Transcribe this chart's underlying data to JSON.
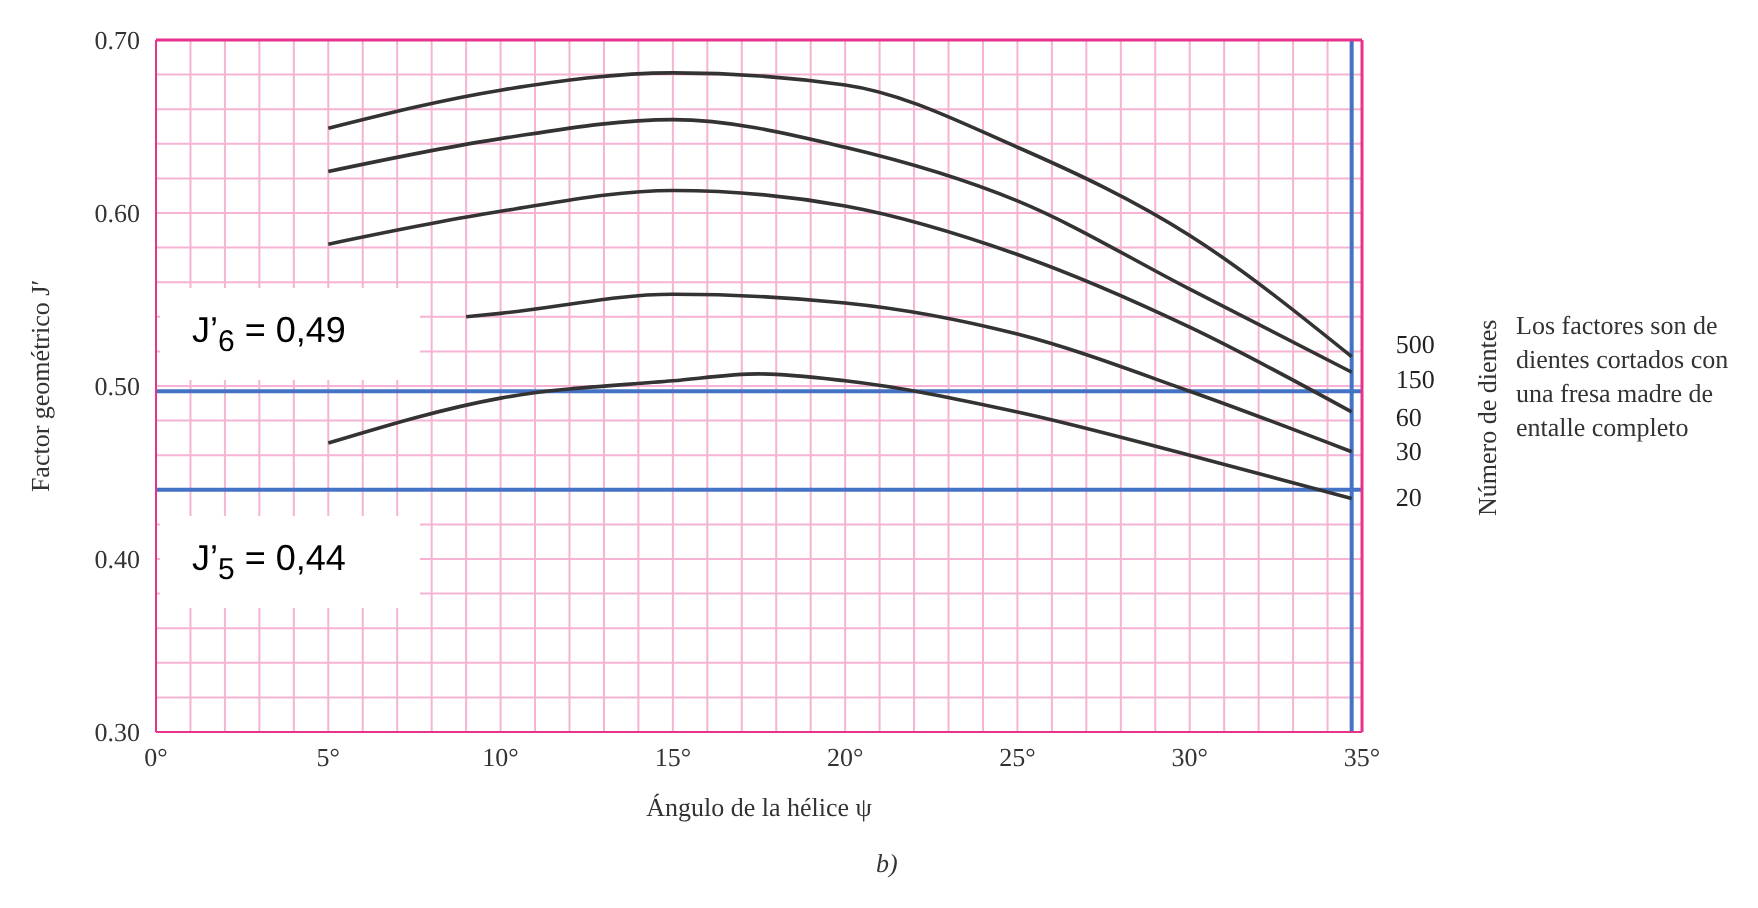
{
  "chart_data": {
    "type": "line",
    "xlabel": "Ángulo de la hélice ψ",
    "ylabel": "Factor geométrico J′",
    "y2label": "Número de dientes",
    "xlim": [
      0,
      35
    ],
    "ylim": [
      0.3,
      0.7
    ],
    "xticks": [
      {
        "value": 0,
        "label": "0°"
      },
      {
        "value": 1,
        "label": null
      },
      {
        "value": 2,
        "label": null
      },
      {
        "value": 3,
        "label": null
      },
      {
        "value": 4,
        "label": null
      },
      {
        "value": 5,
        "label": "5°"
      },
      {
        "value": 6,
        "label": null
      },
      {
        "value": 7,
        "label": null
      },
      {
        "value": 8,
        "label": null
      },
      {
        "value": 9,
        "label": null
      },
      {
        "value": 10,
        "label": "10°"
      },
      {
        "value": 11,
        "label": null
      },
      {
        "value": 12,
        "label": null
      },
      {
        "value": 13,
        "label": null
      },
      {
        "value": 14,
        "label": null
      },
      {
        "value": 15,
        "label": "15°"
      },
      {
        "value": 16,
        "label": null
      },
      {
        "value": 17,
        "label": null
      },
      {
        "value": 18,
        "label": null
      },
      {
        "value": 19,
        "label": null
      },
      {
        "value": 20,
        "label": "20°"
      },
      {
        "value": 21,
        "label": null
      },
      {
        "value": 22,
        "label": null
      },
      {
        "value": 23,
        "label": null
      },
      {
        "value": 24,
        "label": null
      },
      {
        "value": 25,
        "label": "25°"
      },
      {
        "value": 26,
        "label": null
      },
      {
        "value": 27,
        "label": null
      },
      {
        "value": 28,
        "label": null
      },
      {
        "value": 29,
        "label": null
      },
      {
        "value": 30,
        "label": "30°"
      },
      {
        "value": 31,
        "label": null
      },
      {
        "value": 32,
        "label": null
      },
      {
        "value": 33,
        "label": null
      },
      {
        "value": 34,
        "label": null
      },
      {
        "value": 35,
        "label": "35°"
      }
    ],
    "yticks": [
      {
        "value": 0.3,
        "label": "0.30"
      },
      {
        "value": 0.32,
        "label": null
      },
      {
        "value": 0.34,
        "label": null
      },
      {
        "value": 0.36,
        "label": null
      },
      {
        "value": 0.38,
        "label": null
      },
      {
        "value": 0.4,
        "label": "0.40"
      },
      {
        "value": 0.42,
        "label": null
      },
      {
        "value": 0.44,
        "label": null
      },
      {
        "value": 0.46,
        "label": null
      },
      {
        "value": 0.48,
        "label": null
      },
      {
        "value": 0.5,
        "label": "0.50"
      },
      {
        "value": 0.52,
        "label": null
      },
      {
        "value": 0.54,
        "label": null
      },
      {
        "value": 0.56,
        "label": null
      },
      {
        "value": 0.58,
        "label": null
      },
      {
        "value": 0.6,
        "label": "0.60"
      },
      {
        "value": 0.62,
        "label": null
      },
      {
        "value": 0.64,
        "label": null
      },
      {
        "value": 0.66,
        "label": null
      },
      {
        "value": 0.68,
        "label": null
      },
      {
        "value": 0.7,
        "label": "0.70"
      }
    ],
    "grid": true,
    "series": [
      {
        "name": "500",
        "color": "#333333",
        "x": [
          5,
          10,
          15,
          20,
          25,
          30,
          34.7
        ],
        "values": [
          0.649,
          0.671,
          0.681,
          0.674,
          0.638,
          0.587,
          0.517
        ]
      },
      {
        "name": "150",
        "color": "#333333",
        "x": [
          5,
          10,
          15,
          20,
          25,
          30,
          34.7
        ],
        "values": [
          0.624,
          0.643,
          0.654,
          0.638,
          0.607,
          0.556,
          0.508
        ]
      },
      {
        "name": "60",
        "color": "#333333",
        "x": [
          5,
          10,
          15,
          20,
          25,
          30,
          34.7
        ],
        "values": [
          0.582,
          0.601,
          0.613,
          0.604,
          0.576,
          0.534,
          0.485
        ]
      },
      {
        "name": "30",
        "color": "#333333",
        "x": [
          9,
          10,
          15,
          20,
          25,
          30,
          34.7
        ],
        "values": [
          0.54,
          0.542,
          0.553,
          0.548,
          0.53,
          0.497,
          0.462
        ]
      },
      {
        "name": "20",
        "color": "#333333",
        "x": [
          5,
          10,
          15,
          17.5,
          20,
          25,
          30,
          34.7
        ],
        "values": [
          0.467,
          0.493,
          0.503,
          0.507,
          0.503,
          0.485,
          0.46,
          0.435
        ]
      }
    ],
    "ref_lines": [
      {
        "axis": "y",
        "value": 0.497,
        "color": "#4472c4"
      },
      {
        "axis": "y",
        "value": 0.44,
        "color": "#4472c4"
      },
      {
        "axis": "x",
        "value": 34.7,
        "color": "#4472c4"
      }
    ],
    "annotations": [
      "J’$_{6}$ = 0,49",
      "J’$_{5}$ = 0,44",
      "Los factores son de dientes cortados con una fresa madre de entalle completo",
      "b)"
    ]
  }
}
